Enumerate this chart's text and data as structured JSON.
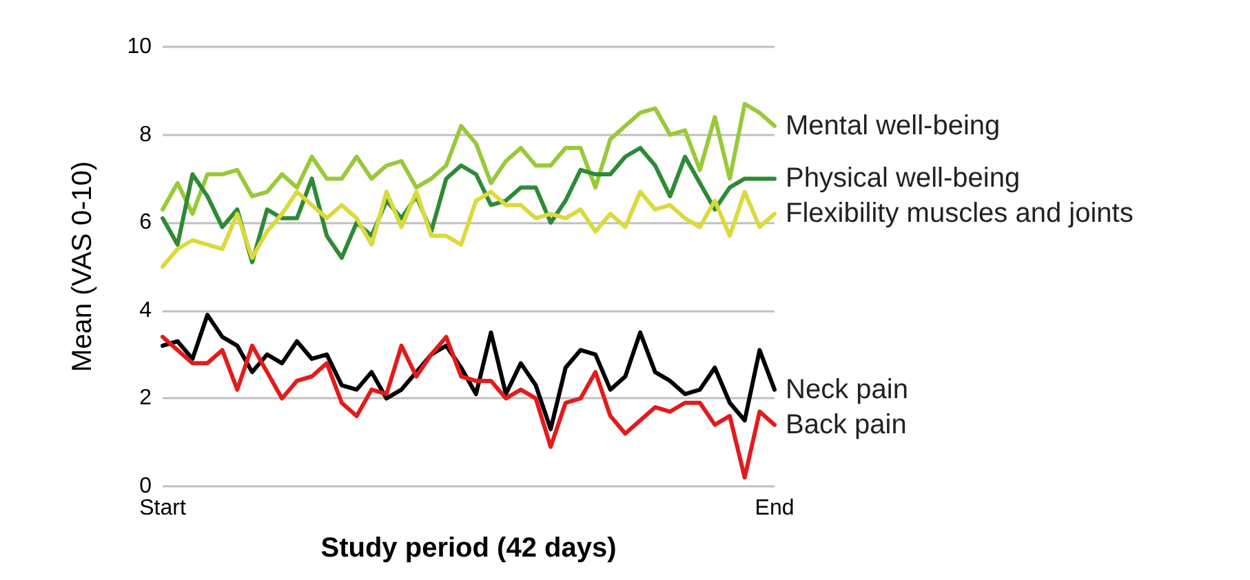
{
  "chart_data": {
    "type": "line",
    "xlabel": "Study period (42 days)",
    "ylabel": "Mean (VAS 0-10)",
    "categories": [
      "Start",
      null,
      null,
      null,
      null,
      null,
      null,
      null,
      null,
      null,
      null,
      null,
      null,
      null,
      null,
      null,
      null,
      null,
      null,
      null,
      null,
      null,
      null,
      null,
      null,
      null,
      null,
      null,
      null,
      null,
      null,
      null,
      null,
      null,
      null,
      null,
      null,
      null,
      null,
      null,
      null,
      "End"
    ],
    "series": [
      {
        "name": "Mental well-being",
        "color": "#99c93a",
        "values": [
          6.3,
          6.9,
          6.2,
          7.1,
          7.1,
          7.2,
          6.6,
          6.7,
          7.1,
          6.8,
          7.5,
          7.0,
          7.0,
          7.5,
          7.0,
          7.3,
          7.4,
          6.8,
          7.0,
          7.3,
          8.2,
          7.8,
          6.9,
          7.4,
          7.7,
          7.3,
          7.3,
          7.7,
          7.7,
          6.8,
          7.9,
          8.2,
          8.5,
          8.6,
          8.0,
          8.1,
          7.2,
          8.4,
          7.0,
          8.7,
          8.5,
          8.2
        ]
      },
      {
        "name": "Physical well-being",
        "color": "#2f8a36",
        "values": [
          6.1,
          5.5,
          7.1,
          6.6,
          5.9,
          6.3,
          5.1,
          6.3,
          6.1,
          6.1,
          7.0,
          5.7,
          5.2,
          6.0,
          5.7,
          6.5,
          6.1,
          6.6,
          5.8,
          7.0,
          7.3,
          7.1,
          6.4,
          6.5,
          6.8,
          6.8,
          6.0,
          6.5,
          7.2,
          7.1,
          7.1,
          7.5,
          7.7,
          7.3,
          6.6,
          7.5,
          6.9,
          6.3,
          6.8,
          7.0,
          7.0,
          7.0
        ]
      },
      {
        "name": "Flexibility muscles and joints",
        "color": "#dada3c",
        "values": [
          5.0,
          5.4,
          5.6,
          5.5,
          5.4,
          6.2,
          5.2,
          5.8,
          6.2,
          6.7,
          6.4,
          6.1,
          6.4,
          6.1,
          5.5,
          6.7,
          5.9,
          6.7,
          5.7,
          5.7,
          5.5,
          6.5,
          6.7,
          6.4,
          6.4,
          6.1,
          6.2,
          6.1,
          6.3,
          5.8,
          6.2,
          5.9,
          6.7,
          6.3,
          6.4,
          6.1,
          5.9,
          6.5,
          5.7,
          6.7,
          5.9,
          6.2
        ]
      },
      {
        "name": "Neck pain",
        "color": "#000000",
        "values": [
          3.2,
          3.3,
          2.9,
          3.9,
          3.4,
          3.2,
          2.6,
          3.0,
          2.8,
          3.3,
          2.9,
          3.0,
          2.3,
          2.2,
          2.6,
          2.0,
          2.2,
          2.6,
          3.0,
          3.2,
          2.7,
          2.1,
          3.5,
          2.1,
          2.8,
          2.3,
          1.3,
          2.7,
          3.1,
          3.0,
          2.2,
          2.5,
          3.5,
          2.6,
          2.4,
          2.1,
          2.2,
          2.7,
          1.9,
          1.5,
          3.1,
          2.2
        ]
      },
      {
        "name": "Back pain",
        "color": "#e31b1b",
        "values": [
          3.4,
          3.1,
          2.8,
          2.8,
          3.1,
          2.2,
          3.2,
          2.6,
          2.0,
          2.4,
          2.5,
          2.8,
          1.9,
          1.6,
          2.2,
          2.1,
          3.2,
          2.5,
          3.0,
          3.4,
          2.5,
          2.4,
          2.4,
          2.0,
          2.2,
          2.0,
          0.9,
          1.9,
          2.0,
          2.6,
          1.6,
          1.2,
          1.5,
          1.8,
          1.7,
          1.9,
          1.9,
          1.4,
          1.6,
          0.2,
          1.7,
          1.4
        ]
      }
    ],
    "ylim": [
      0,
      10
    ],
    "yticks": [
      0,
      2,
      4,
      6,
      8,
      10
    ],
    "grid": "y",
    "legend": false,
    "marker": "none",
    "line_style": "solid"
  }
}
